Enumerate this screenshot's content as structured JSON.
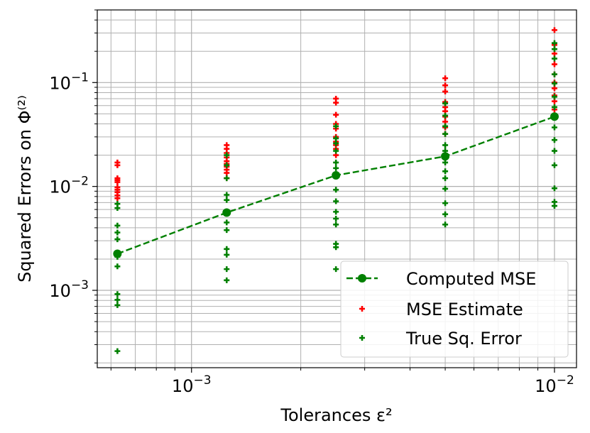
{
  "chart_data": {
    "type": "scatter",
    "xlabel": "Tolerances ε²",
    "ylabel": "Squared Errors on Φ⁽²⁾",
    "x_scale": "log",
    "y_scale": "log",
    "xlim": [
      0.00055,
      0.0115
    ],
    "ylim": [
      0.00018,
      0.5
    ],
    "grid": true,
    "legend_position": "bottom-right",
    "x_ticks": [
      {
        "value": 0.001,
        "base": "10",
        "exp": "−3"
      },
      {
        "value": 0.01,
        "base": "10",
        "exp": "−2"
      }
    ],
    "y_ticks": [
      {
        "value": 0.001,
        "base": "10",
        "exp": "−3"
      },
      {
        "value": 0.01,
        "base": "10",
        "exp": "−2"
      },
      {
        "value": 0.1,
        "base": "10",
        "exp": "−1"
      }
    ],
    "series": [
      {
        "name": "Computed MSE",
        "kind": "line-marker",
        "color": "#008000",
        "points": [
          [
            0.000625,
            0.00225
          ],
          [
            0.00125,
            0.0056
          ],
          [
            0.0025,
            0.0128
          ],
          [
            0.005,
            0.0195
          ],
          [
            0.01,
            0.047
          ]
        ]
      },
      {
        "name": "MSE Estimate",
        "kind": "plus",
        "color": "#ff0000",
        "points": [
          [
            0.000625,
            0.017
          ],
          [
            0.000625,
            0.016
          ],
          [
            0.000625,
            0.012
          ],
          [
            0.000625,
            0.0115
          ],
          [
            0.000625,
            0.011
          ],
          [
            0.000625,
            0.0098
          ],
          [
            0.000625,
            0.0093
          ],
          [
            0.000625,
            0.0088
          ],
          [
            0.000625,
            0.0082
          ],
          [
            0.000625,
            0.0077
          ],
          [
            0.00125,
            0.025
          ],
          [
            0.00125,
            0.023
          ],
          [
            0.00125,
            0.021
          ],
          [
            0.00125,
            0.019
          ],
          [
            0.00125,
            0.0175
          ],
          [
            0.00125,
            0.0165
          ],
          [
            0.00125,
            0.0155
          ],
          [
            0.00125,
            0.0145
          ],
          [
            0.00125,
            0.0135
          ],
          [
            0.00125,
            0.012
          ],
          [
            0.0025,
            0.07
          ],
          [
            0.0025,
            0.064
          ],
          [
            0.0025,
            0.049
          ],
          [
            0.0025,
            0.04
          ],
          [
            0.0025,
            0.036
          ],
          [
            0.0025,
            0.03
          ],
          [
            0.0025,
            0.027
          ],
          [
            0.0025,
            0.025
          ],
          [
            0.0025,
            0.023
          ],
          [
            0.0025,
            0.02
          ],
          [
            0.005,
            0.11
          ],
          [
            0.005,
            0.094
          ],
          [
            0.005,
            0.082
          ],
          [
            0.005,
            0.065
          ],
          [
            0.005,
            0.058
          ],
          [
            0.005,
            0.053
          ],
          [
            0.005,
            0.047
          ],
          [
            0.005,
            0.042
          ],
          [
            0.005,
            0.037
          ],
          [
            0.005,
            0.032
          ],
          [
            0.01,
            0.32
          ],
          [
            0.01,
            0.23
          ],
          [
            0.01,
            0.19
          ],
          [
            0.01,
            0.15
          ],
          [
            0.01,
            0.12
          ],
          [
            0.01,
            0.1
          ],
          [
            0.01,
            0.088
          ],
          [
            0.01,
            0.075
          ],
          [
            0.01,
            0.066
          ],
          [
            0.01,
            0.055
          ]
        ]
      },
      {
        "name": "True Sq. Error",
        "kind": "plus",
        "color": "#008000",
        "points": [
          [
            0.000625,
            0.0068
          ],
          [
            0.000625,
            0.0062
          ],
          [
            0.000625,
            0.0042
          ],
          [
            0.000625,
            0.0036
          ],
          [
            0.000625,
            0.0031
          ],
          [
            0.000625,
            0.0021
          ],
          [
            0.000625,
            0.0017
          ],
          [
            0.000625,
            0.00092
          ],
          [
            0.000625,
            0.00081
          ],
          [
            0.000625,
            0.00072
          ],
          [
            0.000625,
            0.00026
          ],
          [
            0.00125,
            0.02
          ],
          [
            0.00125,
            0.016
          ],
          [
            0.00125,
            0.012
          ],
          [
            0.00125,
            0.0083
          ],
          [
            0.00125,
            0.0074
          ],
          [
            0.00125,
            0.0045
          ],
          [
            0.00125,
            0.0038
          ],
          [
            0.00125,
            0.0025
          ],
          [
            0.00125,
            0.0022
          ],
          [
            0.00125,
            0.0016
          ],
          [
            0.00125,
            0.00125
          ],
          [
            0.0025,
            0.038
          ],
          [
            0.0025,
            0.029
          ],
          [
            0.0025,
            0.026
          ],
          [
            0.0025,
            0.022
          ],
          [
            0.0025,
            0.017
          ],
          [
            0.0025,
            0.015
          ],
          [
            0.0025,
            0.0093
          ],
          [
            0.0025,
            0.0072
          ],
          [
            0.0025,
            0.0057
          ],
          [
            0.0025,
            0.0049
          ],
          [
            0.0025,
            0.0043
          ],
          [
            0.0025,
            0.0028
          ],
          [
            0.0025,
            0.0026
          ],
          [
            0.0025,
            0.0016
          ],
          [
            0.005,
            0.063
          ],
          [
            0.005,
            0.048
          ],
          [
            0.005,
            0.038
          ],
          [
            0.005,
            0.032
          ],
          [
            0.005,
            0.025
          ],
          [
            0.005,
            0.022
          ],
          [
            0.005,
            0.017
          ],
          [
            0.005,
            0.014
          ],
          [
            0.005,
            0.012
          ],
          [
            0.005,
            0.0095
          ],
          [
            0.005,
            0.0069
          ],
          [
            0.005,
            0.0054
          ],
          [
            0.005,
            0.0043
          ],
          [
            0.01,
            0.24
          ],
          [
            0.01,
            0.21
          ],
          [
            0.01,
            0.17
          ],
          [
            0.01,
            0.12
          ],
          [
            0.01,
            0.098
          ],
          [
            0.01,
            0.073
          ],
          [
            0.01,
            0.058
          ],
          [
            0.01,
            0.037
          ],
          [
            0.01,
            0.028
          ],
          [
            0.01,
            0.022
          ],
          [
            0.01,
            0.016
          ],
          [
            0.01,
            0.0096
          ],
          [
            0.01,
            0.0071
          ],
          [
            0.01,
            0.0065
          ]
        ]
      }
    ]
  }
}
